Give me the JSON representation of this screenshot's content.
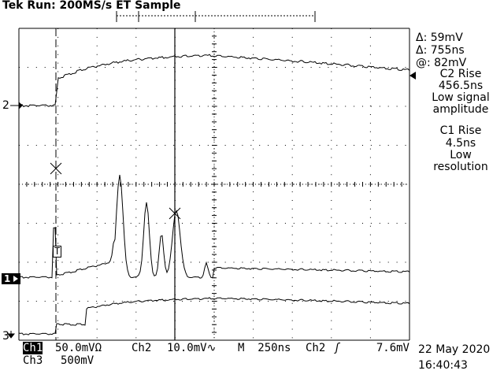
{
  "header": {
    "status": "Tek Run: 200MS/s ET Sample"
  },
  "cursor_readout": {
    "delta_v": "Δ: 59mV",
    "delta_t": "Δ: 755ns",
    "at_v": "@: 82mV"
  },
  "notes": {
    "c2_title": "C2 Rise",
    "c2_value": "456.5ns",
    "c2_note_1": "Low signal",
    "c2_note_2": "amplitude",
    "c1_title": "C1 Rise",
    "c1_value": "4.5ns",
    "c1_note_1": "Low",
    "c1_note_2": "resolution"
  },
  "channel_markers": {
    "ch2": "2",
    "ch1": "1",
    "ch3": "3",
    "trigger": "T"
  },
  "footer": {
    "ch1_label": "Ch1",
    "ch1_scale": "50.0mVΩ",
    "ch2_label": "Ch2",
    "ch2_scale": "10.0mV∿",
    "timebase": "M  250ns",
    "trig_source": "Ch2",
    "trig_level": "7.6mV",
    "ch3_label": "Ch3",
    "ch3_scale": "500mV",
    "date": "22 May 2020",
    "time": "16:40:43"
  }
}
